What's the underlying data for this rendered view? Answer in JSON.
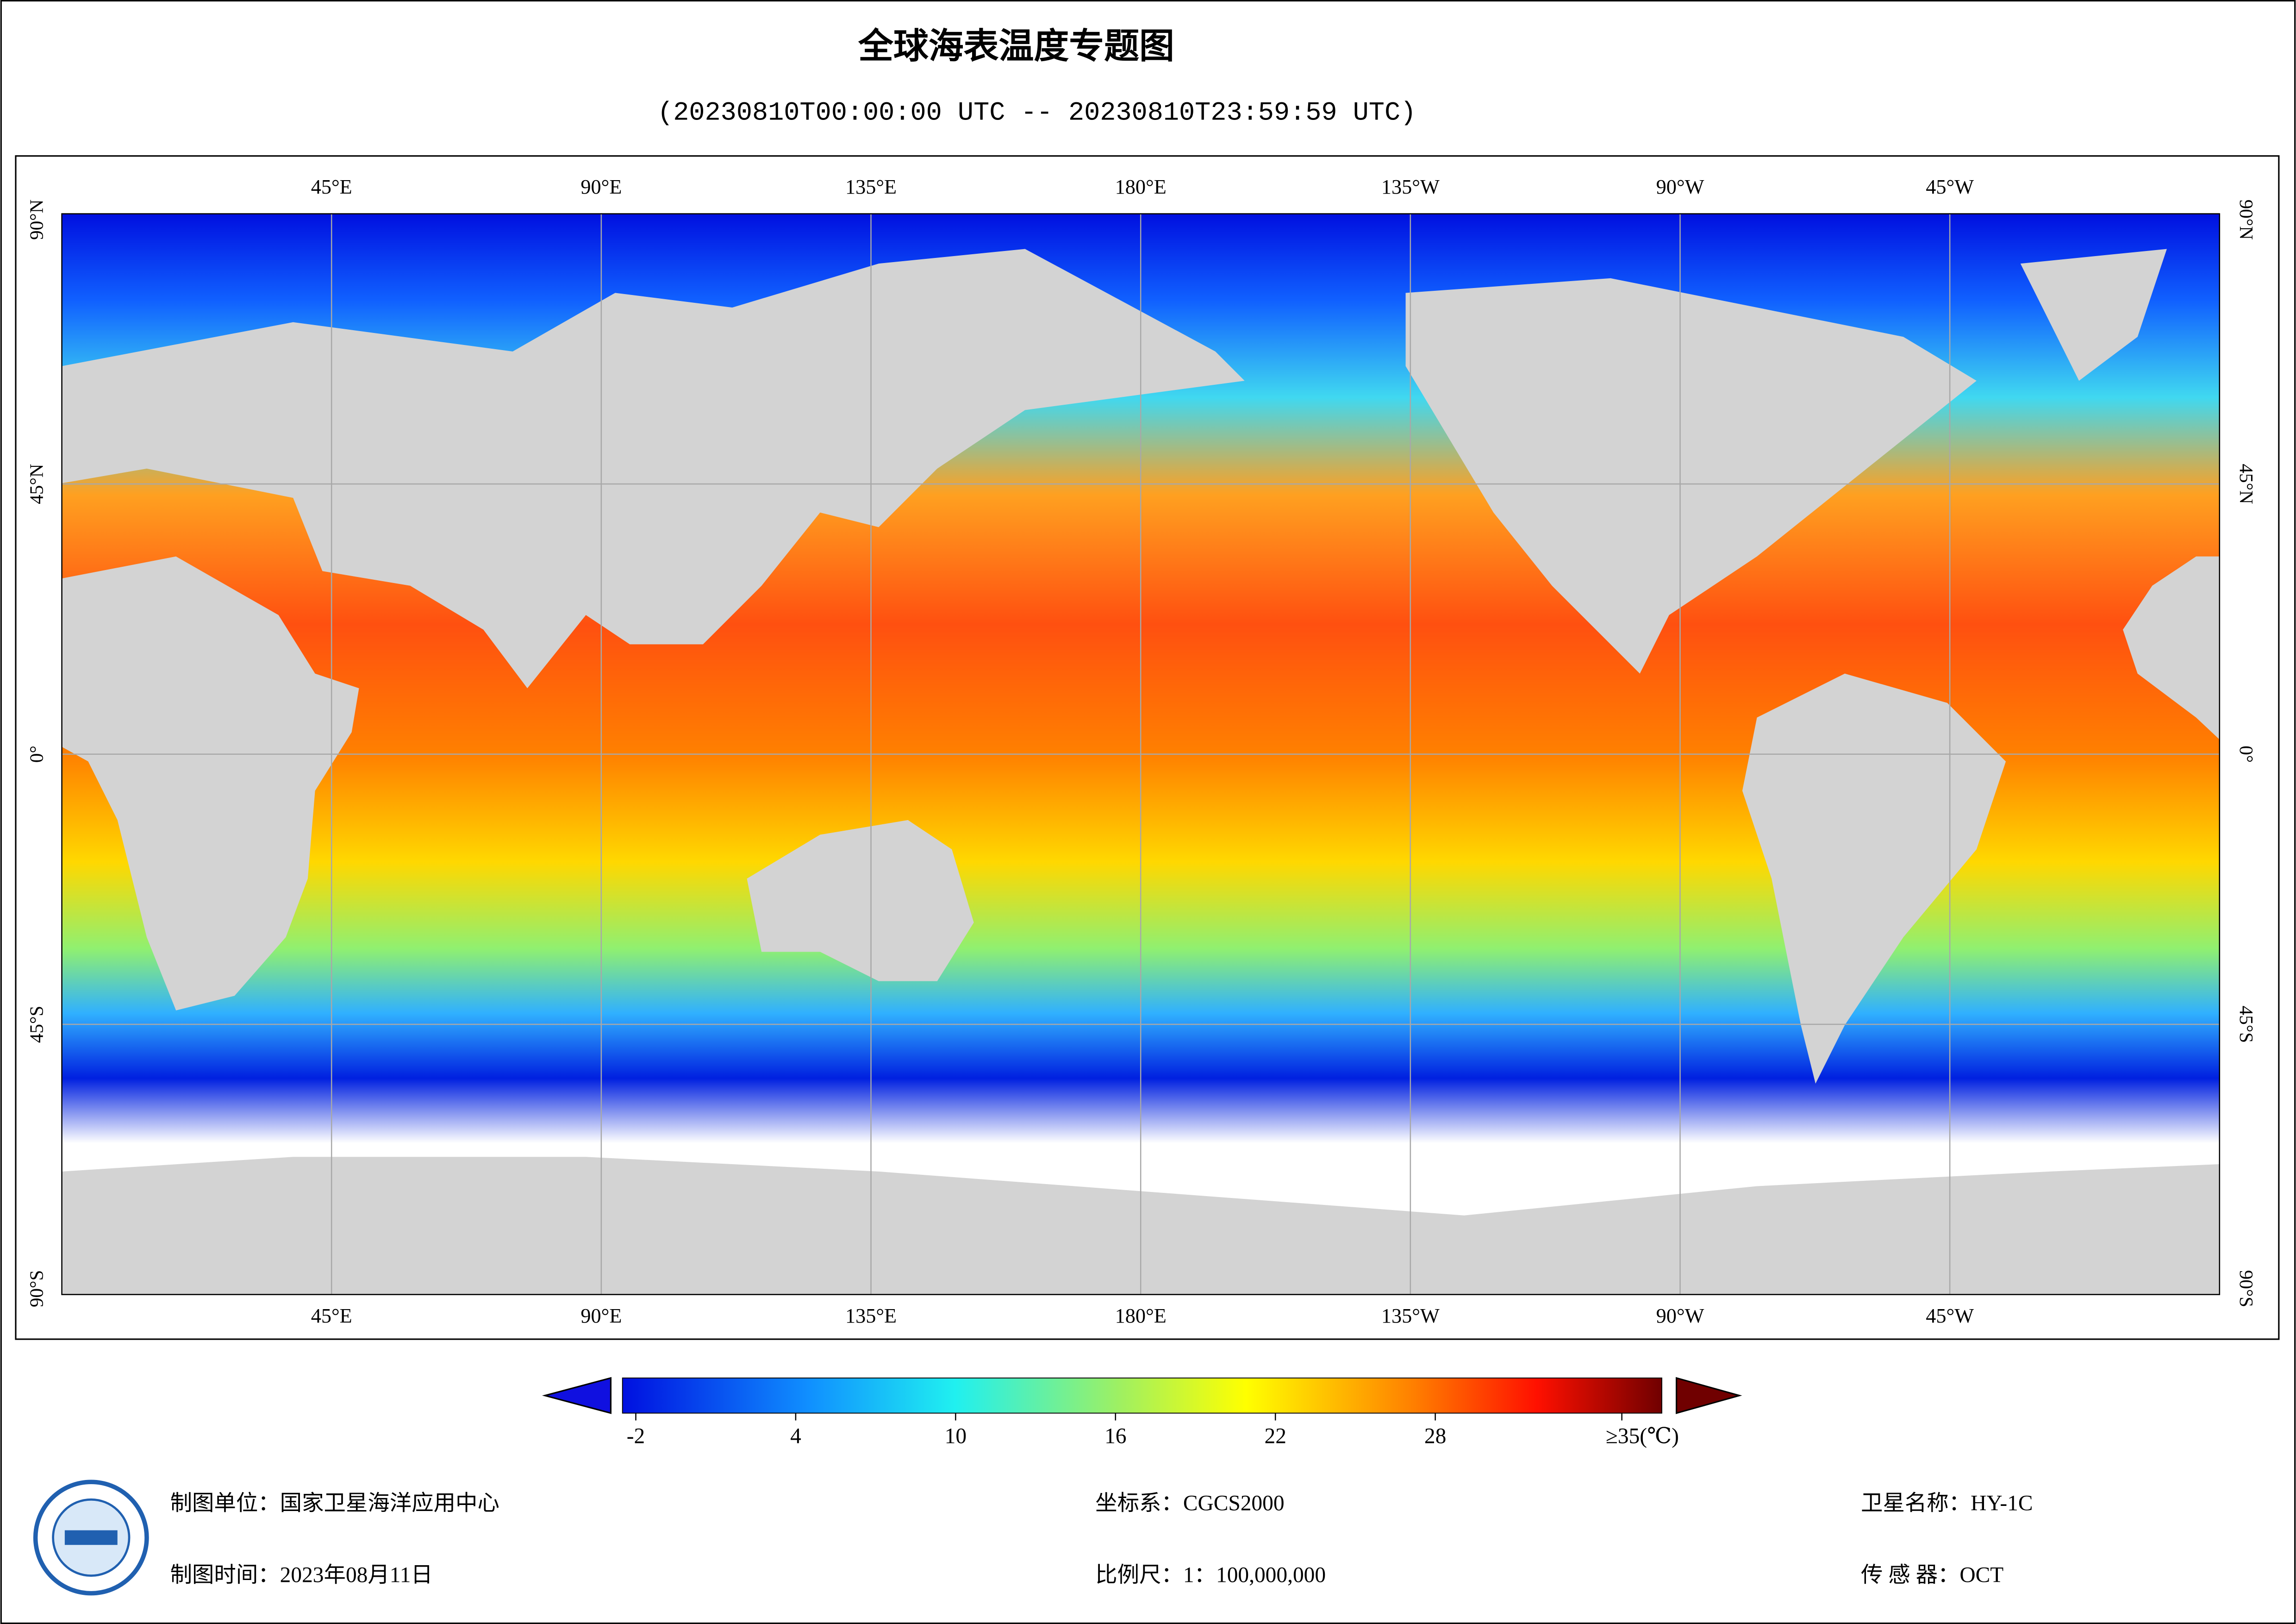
{
  "header": {
    "title": "全球海表温度专题图",
    "subtitle": "(20230810T00:00:00 UTC -- 20230810T23:59:59 UTC)"
  },
  "map": {
    "lon_range": [
      0,
      360
    ],
    "lat_range": [
      -90,
      90
    ],
    "lon_ticks": [
      {
        "value": 45,
        "label": "45°E"
      },
      {
        "value": 90,
        "label": "90°E"
      },
      {
        "value": 135,
        "label": "135°E"
      },
      {
        "value": 180,
        "label": "180°E"
      },
      {
        "value": 225,
        "label": "135°W"
      },
      {
        "value": 270,
        "label": "90°W"
      },
      {
        "value": 315,
        "label": "45°W"
      }
    ],
    "lat_ticks": [
      {
        "value": 90,
        "label": "90°N"
      },
      {
        "value": 45,
        "label": "45°N"
      },
      {
        "value": 0,
        "label": "0°"
      },
      {
        "value": -45,
        "label": "45°S"
      },
      {
        "value": -90,
        "label": "90°S"
      }
    ]
  },
  "colorbar": {
    "range": [
      -2.5,
      36.5
    ],
    "ticks": [
      -2,
      4,
      10,
      16,
      22,
      28,
      {
        "value": 35,
        "label": "≥35(℃)"
      }
    ]
  },
  "footer": {
    "unit": "制图单位：国家卫星海洋应用中心",
    "date": "制图时间：2023年08月11日",
    "crs": "坐标系：CGCS2000",
    "scale": "比例尺：1：100,000,000",
    "satellite": "卫星名称：HY-1C",
    "sensor": "传 感 器：OCT"
  }
}
